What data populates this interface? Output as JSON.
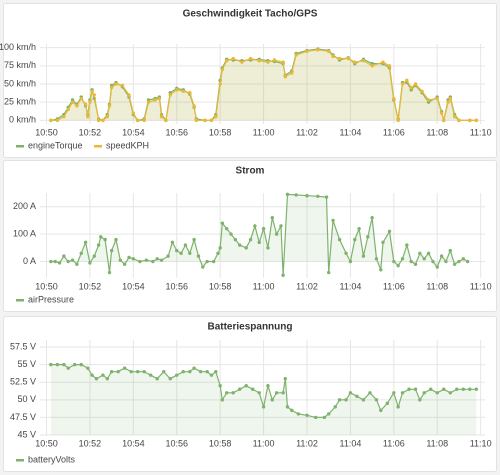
{
  "chart_data": [
    {
      "type": "line",
      "title": "Geschwindigkeit Tacho/GPS",
      "grid": true,
      "legend": "bottom-left",
      "xlim": [
        649.7,
        670.2
      ],
      "ylim": [
        -5,
        105
      ],
      "xticks": [
        {
          "value": 650,
          "label": "10:50"
        },
        {
          "value": 652,
          "label": "10:52"
        },
        {
          "value": 654,
          "label": "10:54"
        },
        {
          "value": 656,
          "label": "10:56"
        },
        {
          "value": 658,
          "label": "10:58"
        },
        {
          "value": 660,
          "label": "11:00"
        },
        {
          "value": 662,
          "label": "11:02"
        },
        {
          "value": 664,
          "label": "11:04"
        },
        {
          "value": 666,
          "label": "11:06"
        },
        {
          "value": 668,
          "label": "11:08"
        },
        {
          "value": 670,
          "label": "11:10"
        }
      ],
      "yticks": [
        {
          "value": 0,
          "label": "0 km/h"
        },
        {
          "value": 25,
          "label": "25 km/h"
        },
        {
          "value": 50,
          "label": "50 km/h"
        },
        {
          "value": 75,
          "label": "75 km/h"
        },
        {
          "value": 100,
          "label": "100 km/h"
        }
      ],
      "x": [
        650.2,
        650.5,
        650.8,
        651.0,
        651.2,
        651.4,
        651.6,
        651.8,
        651.9,
        652.0,
        652.1,
        652.2,
        652.4,
        652.6,
        652.8,
        652.9,
        653.0,
        653.2,
        653.5,
        653.8,
        654.0,
        654.2,
        654.5,
        654.7,
        655.0,
        655.2,
        655.3,
        655.5,
        655.7,
        656.0,
        656.3,
        656.6,
        656.8,
        656.9,
        657.3,
        657.6,
        657.8,
        658.0,
        658.1,
        658.3,
        658.6,
        659.0,
        659.4,
        659.8,
        660.2,
        660.5,
        660.9,
        661.0,
        661.3,
        661.5,
        662.0,
        662.5,
        663.0,
        663.2,
        663.5,
        663.9,
        664.2,
        664.6,
        665.0,
        665.5,
        665.8,
        666.0,
        666.2,
        666.4,
        666.6,
        666.8,
        667.0,
        667.3,
        667.6,
        668.0,
        668.2,
        668.3,
        668.5,
        668.6,
        668.8,
        669.0,
        669.5,
        669.8
      ],
      "series": [
        {
          "name": "engineTorque",
          "color": "#7eb26d",
          "values": [
            0,
            2,
            8,
            18,
            28,
            22,
            32,
            20,
            8,
            28,
            42,
            30,
            2,
            0,
            8,
            22,
            48,
            52,
            46,
            32,
            8,
            0,
            2,
            28,
            30,
            32,
            8,
            0,
            38,
            44,
            42,
            36,
            18,
            2,
            0,
            0,
            8,
            55,
            72,
            84,
            83,
            82,
            83,
            84,
            82,
            81,
            78,
            62,
            68,
            92,
            96,
            98,
            96,
            90,
            83,
            86,
            78,
            84,
            78,
            78,
            72,
            28,
            2,
            52,
            52,
            42,
            48,
            38,
            25,
            32,
            12,
            0,
            28,
            32,
            8,
            0,
            0,
            0
          ]
        },
        {
          "name": "speedKPH",
          "color": "#eab839",
          "values": [
            0,
            0,
            5,
            15,
            25,
            20,
            30,
            22,
            5,
            25,
            40,
            35,
            0,
            0,
            5,
            20,
            45,
            50,
            48,
            35,
            10,
            0,
            0,
            25,
            28,
            30,
            5,
            0,
            35,
            42,
            40,
            38,
            20,
            0,
            0,
            0,
            5,
            50,
            70,
            82,
            85,
            80,
            85,
            82,
            80,
            83,
            80,
            60,
            65,
            90,
            95,
            97,
            95,
            88,
            85,
            85,
            80,
            82,
            75,
            80,
            75,
            30,
            0,
            50,
            55,
            45,
            50,
            40,
            28,
            30,
            10,
            0,
            25,
            30,
            5,
            0,
            0,
            0
          ]
        }
      ]
    },
    {
      "type": "line",
      "title": "Strom",
      "grid": true,
      "legend": "bottom-left",
      "xlim": [
        649.7,
        670.2
      ],
      "ylim": [
        -60,
        250
      ],
      "xticks": [
        {
          "value": 650,
          "label": "10:50"
        },
        {
          "value": 652,
          "label": "10:52"
        },
        {
          "value": 654,
          "label": "10:54"
        },
        {
          "value": 656,
          "label": "10:56"
        },
        {
          "value": 658,
          "label": "10:58"
        },
        {
          "value": 660,
          "label": "11:00"
        },
        {
          "value": 662,
          "label": "11:02"
        },
        {
          "value": 664,
          "label": "11:04"
        },
        {
          "value": 666,
          "label": "11:06"
        },
        {
          "value": 668,
          "label": "11:08"
        },
        {
          "value": 670,
          "label": "11:10"
        }
      ],
      "yticks": [
        {
          "value": 0,
          "label": "0 A"
        },
        {
          "value": 100,
          "label": "100 A"
        },
        {
          "value": 200,
          "label": "200 A"
        }
      ],
      "x": [
        650.2,
        650.4,
        650.6,
        650.8,
        651.0,
        651.2,
        651.4,
        651.6,
        651.8,
        652.0,
        652.2,
        652.4,
        652.5,
        652.7,
        652.9,
        653.0,
        653.2,
        653.4,
        653.6,
        653.8,
        654.0,
        654.3,
        654.6,
        654.9,
        655.1,
        655.3,
        655.6,
        655.8,
        656.0,
        656.2,
        656.4,
        656.6,
        656.8,
        657.0,
        657.2,
        657.4,
        657.7,
        657.9,
        658.0,
        658.1,
        658.3,
        658.5,
        658.7,
        658.9,
        659.2,
        659.4,
        659.6,
        659.8,
        660.0,
        660.2,
        660.4,
        660.6,
        660.8,
        660.9,
        661.1,
        661.5,
        662.0,
        662.5,
        662.9,
        663.0,
        663.2,
        663.5,
        663.8,
        664.0,
        664.2,
        664.4,
        664.6,
        664.8,
        665.0,
        665.2,
        665.4,
        665.5,
        665.8,
        666.0,
        666.2,
        666.4,
        666.6,
        666.8,
        667.0,
        667.2,
        667.4,
        667.6,
        667.8,
        668.0,
        668.2,
        668.4,
        668.6,
        668.8,
        669.0,
        669.2,
        669.4
      ],
      "series": [
        {
          "name": "airPressure",
          "color": "#7eb26d",
          "values": [
            0,
            0,
            -5,
            20,
            0,
            5,
            -10,
            30,
            70,
            -5,
            20,
            60,
            90,
            80,
            -40,
            40,
            80,
            5,
            -10,
            15,
            10,
            0,
            5,
            0,
            10,
            5,
            20,
            70,
            40,
            30,
            60,
            30,
            80,
            20,
            -20,
            0,
            0,
            30,
            50,
            140,
            120,
            100,
            80,
            60,
            50,
            80,
            130,
            70,
            120,
            50,
            160,
            100,
            130,
            -50,
            245,
            243,
            240,
            238,
            235,
            -40,
            150,
            80,
            30,
            0,
            80,
            120,
            20,
            90,
            160,
            10,
            -30,
            70,
            110,
            0,
            -15,
            10,
            60,
            0,
            -10,
            30,
            10,
            30,
            0,
            -20,
            20,
            0,
            40,
            -10,
            0,
            10,
            0
          ]
        }
      ]
    },
    {
      "type": "line",
      "title": "Batteriespannung",
      "grid": true,
      "legend": "bottom-left",
      "xlim": [
        649.7,
        670.2
      ],
      "ylim": [
        45,
        58.5
      ],
      "xticks": [
        {
          "value": 650,
          "label": "10:50"
        },
        {
          "value": 652,
          "label": "10:52"
        },
        {
          "value": 654,
          "label": "10:54"
        },
        {
          "value": 656,
          "label": "10:56"
        },
        {
          "value": 658,
          "label": "10:58"
        },
        {
          "value": 660,
          "label": "11:00"
        },
        {
          "value": 662,
          "label": "11:02"
        },
        {
          "value": 664,
          "label": "11:04"
        },
        {
          "value": 666,
          "label": "11:06"
        },
        {
          "value": 668,
          "label": "11:08"
        },
        {
          "value": 670,
          "label": "11:10"
        }
      ],
      "yticks": [
        {
          "value": 45,
          "label": "45 V"
        },
        {
          "value": 47.5,
          "label": "47.5 V"
        },
        {
          "value": 50,
          "label": "50 V"
        },
        {
          "value": 52.5,
          "label": "52.5 V"
        },
        {
          "value": 55,
          "label": "55 V"
        },
        {
          "value": 57.5,
          "label": "57.5 V"
        }
      ],
      "x": [
        650.2,
        650.5,
        650.8,
        651.0,
        651.3,
        651.6,
        651.9,
        652.1,
        652.3,
        652.6,
        652.8,
        653.0,
        653.3,
        653.6,
        653.9,
        654.2,
        654.5,
        654.8,
        655.1,
        655.4,
        655.7,
        656.0,
        656.3,
        656.6,
        656.8,
        657.1,
        657.4,
        657.6,
        657.8,
        658.0,
        658.1,
        658.3,
        658.6,
        658.9,
        659.2,
        659.5,
        659.8,
        660.0,
        660.2,
        660.4,
        660.6,
        660.9,
        661.0,
        661.1,
        661.3,
        661.6,
        662.0,
        662.4,
        662.8,
        663.0,
        663.3,
        663.5,
        663.8,
        664.0,
        664.3,
        664.6,
        664.9,
        665.2,
        665.4,
        665.7,
        666.0,
        666.2,
        666.4,
        666.7,
        667.0,
        667.2,
        667.4,
        667.7,
        668.0,
        668.3,
        668.6,
        668.9,
        669.2,
        669.5,
        669.8
      ],
      "series": [
        {
          "name": "batteryVolts",
          "color": "#7eb26d",
          "values": [
            55,
            55,
            55,
            54.5,
            55,
            55,
            54.5,
            53.5,
            53,
            53.5,
            53,
            54,
            54,
            54.5,
            54,
            54,
            54,
            53.5,
            53,
            54,
            53,
            53.5,
            54,
            54,
            54.5,
            54,
            54,
            53.5,
            54,
            52,
            50,
            51,
            51,
            51.5,
            52,
            51.5,
            51,
            49,
            52,
            50,
            51,
            51,
            53,
            49,
            48.5,
            48,
            47.8,
            47.5,
            47.5,
            48,
            49,
            50,
            50,
            51,
            50.5,
            50,
            51,
            50,
            48.5,
            49.5,
            51,
            49,
            51,
            51.5,
            51.5,
            50,
            51,
            51.5,
            51,
            51.5,
            51,
            51.5,
            51.5,
            51.5,
            51.5
          ]
        }
      ]
    }
  ]
}
